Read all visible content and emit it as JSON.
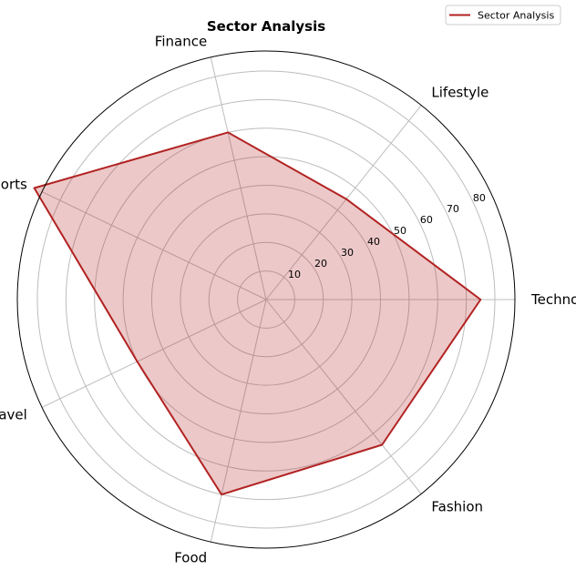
{
  "chart_data": {
    "type": "radar",
    "title": "Sector Analysis",
    "categories": [
      "Technology",
      "Lifestyle",
      "Finance",
      "Sports",
      "Travel",
      "Food",
      "Fashion"
    ],
    "series": [
      {
        "name": "Sector Analysis",
        "values": [
          75,
          45,
          60,
          90,
          50,
          70,
          65
        ],
        "line_color": "#b22222",
        "fill_color": "#b22222",
        "fill_opacity": 0.25
      }
    ],
    "r_ticks": [
      10,
      20,
      30,
      40,
      50,
      60,
      70,
      80
    ],
    "r_tick_labels": [
      "10",
      "20",
      "30",
      "40",
      "50",
      "60",
      "70",
      "80"
    ],
    "rlim": [
      0,
      87
    ],
    "grid": true,
    "legend_position": "top-right"
  }
}
